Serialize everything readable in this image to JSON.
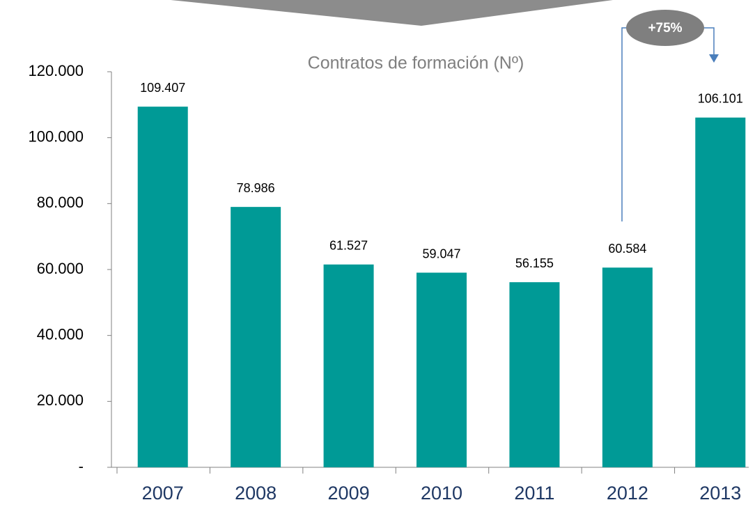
{
  "chart_data": {
    "type": "bar",
    "title": "Contratos de formación (Nº)",
    "categories": [
      "2007",
      "2008",
      "2009",
      "2010",
      "2011",
      "2012",
      "2013"
    ],
    "values": [
      109407,
      78986,
      61527,
      59047,
      56155,
      60584,
      106101
    ],
    "value_labels": [
      "109.407",
      "78.986",
      "61.527",
      "59.047",
      "56.155",
      "60.584",
      "106.101"
    ],
    "color": "#009a96",
    "ylim": [
      0,
      120000
    ],
    "yticks": [
      {
        "value": 0,
        "label": "-"
      },
      {
        "value": 20000,
        "label": "20.000"
      },
      {
        "value": 40000,
        "label": "40.000"
      },
      {
        "value": 60000,
        "label": "60.000"
      },
      {
        "value": 80000,
        "label": "80.000"
      },
      {
        "value": 100000,
        "label": "100.000"
      },
      {
        "value": 120000,
        "label": "120.000"
      }
    ],
    "annotation": "+75%",
    "grid": false
  }
}
